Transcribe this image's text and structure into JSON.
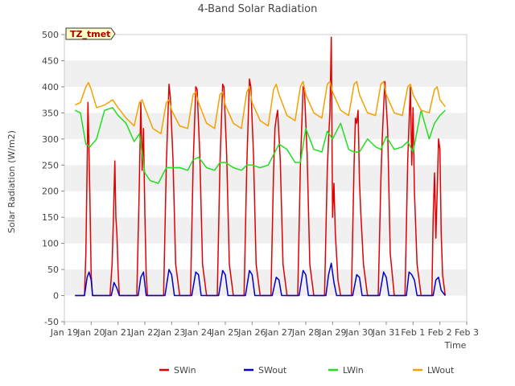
{
  "chart_data": {
    "type": "line",
    "title": "4-Band Solar Radiation",
    "xlabel": "Time",
    "ylabel": "Solar Radiation (W/m2)",
    "badge": "TZ_tmet",
    "ylim": [
      -50,
      500
    ],
    "yticks": [
      -50,
      0,
      50,
      100,
      150,
      200,
      250,
      300,
      350,
      400,
      450,
      500
    ],
    "xlim": [
      0,
      15
    ],
    "xtick_labels": [
      "Jan 19",
      "Jan 20",
      "Jan 21",
      "Jan 22",
      "Jan 23",
      "Jan 24",
      "Jan 25",
      "Jan 26",
      "Jan 27",
      "Jan 28",
      "Jan 29",
      "Jan 30",
      "Jan 31",
      "Feb 1",
      "Feb 2",
      "Feb 3"
    ],
    "legend_position": "bottom",
    "grid": "horizontal bands",
    "series": [
      {
        "name": "SWin",
        "color": "#e00000",
        "x": [
          0.4,
          0.75,
          0.8,
          0.85,
          0.88,
          0.91,
          0.95,
          1.0,
          1.05,
          1.3,
          1.7,
          1.78,
          1.83,
          1.88,
          1.92,
          1.96,
          2.0,
          2.05,
          2.1,
          2.3,
          2.7,
          2.78,
          2.85,
          2.9,
          2.95,
          3.0,
          3.05,
          3.1,
          3.4,
          3.7,
          3.8,
          3.9,
          3.95,
          4.05,
          4.15,
          4.3,
          4.7,
          4.8,
          4.9,
          4.95,
          5.05,
          5.15,
          5.3,
          5.7,
          5.8,
          5.9,
          5.95,
          6.05,
          6.15,
          6.3,
          6.7,
          6.8,
          6.9,
          6.95,
          7.05,
          7.15,
          7.3,
          7.7,
          7.8,
          7.85,
          7.9,
          7.95,
          8.05,
          8.15,
          8.3,
          8.7,
          8.8,
          8.9,
          8.95,
          9.05,
          9.15,
          9.3,
          9.7,
          9.8,
          9.85,
          9.9,
          9.95,
          10.0,
          10.05,
          10.1,
          10.2,
          10.3,
          10.7,
          10.8,
          10.85,
          10.9,
          10.95,
          11.0,
          11.05,
          11.15,
          11.3,
          11.7,
          11.8,
          11.85,
          11.9,
          11.95,
          12.05,
          12.15,
          12.3,
          12.7,
          12.8,
          12.85,
          12.9,
          12.95,
          13.0,
          13.05,
          13.15,
          13.3,
          13.7,
          13.75,
          13.8,
          13.85,
          13.9,
          13.95,
          14.0,
          14.05,
          14.1,
          14.2
        ],
        "values": [
          0,
          0,
          80,
          250,
          370,
          300,
          190,
          40,
          0,
          0,
          0,
          60,
          150,
          258,
          150,
          118,
          50,
          0,
          0,
          0,
          0,
          180,
          370,
          240,
          320,
          160,
          40,
          0,
          0,
          0,
          250,
          405,
          380,
          260,
          60,
          0,
          0,
          250,
          400,
          395,
          270,
          60,
          0,
          0,
          250,
          405,
          400,
          270,
          60,
          0,
          0,
          250,
          415,
          400,
          270,
          60,
          0,
          0,
          240,
          320,
          340,
          355,
          260,
          60,
          0,
          0,
          250,
          400,
          395,
          270,
          60,
          0,
          0,
          240,
          300,
          350,
          495,
          150,
          215,
          120,
          30,
          0,
          0,
          250,
          340,
          330,
          355,
          220,
          160,
          60,
          0,
          0,
          220,
          300,
          360,
          410,
          320,
          80,
          0,
          0,
          260,
          330,
          400,
          250,
          360,
          200,
          60,
          0,
          0,
          150,
          235,
          110,
          200,
          300,
          280,
          120,
          40,
          0
        ]
      },
      {
        "name": "SWout",
        "color": "#0000cc",
        "x": [
          0.4,
          0.75,
          0.85,
          0.92,
          1.0,
          1.05,
          1.3,
          1.75,
          1.85,
          1.95,
          2.05,
          2.3,
          2.75,
          2.85,
          2.95,
          3.05,
          3.4,
          3.75,
          3.9,
          4.0,
          4.1,
          4.3,
          4.75,
          4.9,
          5.0,
          5.1,
          5.3,
          5.75,
          5.9,
          6.0,
          6.1,
          6.3,
          6.75,
          6.9,
          7.0,
          7.1,
          7.3,
          7.75,
          7.9,
          8.0,
          8.1,
          8.3,
          8.75,
          8.9,
          9.0,
          9.1,
          9.3,
          9.75,
          9.85,
          9.95,
          10.05,
          10.15,
          10.3,
          10.75,
          10.9,
          11.0,
          11.1,
          11.3,
          11.75,
          11.9,
          12.0,
          12.1,
          12.3,
          12.75,
          12.85,
          12.95,
          13.05,
          13.15,
          13.3,
          13.75,
          13.85,
          13.95,
          14.05,
          14.2
        ],
        "values": [
          0,
          0,
          35,
          45,
          30,
          0,
          0,
          0,
          25,
          15,
          0,
          0,
          0,
          35,
          45,
          0,
          0,
          0,
          50,
          40,
          0,
          0,
          0,
          45,
          40,
          0,
          0,
          0,
          48,
          40,
          0,
          0,
          0,
          48,
          40,
          0,
          0,
          0,
          35,
          30,
          0,
          0,
          0,
          48,
          40,
          0,
          0,
          0,
          40,
          62,
          25,
          0,
          0,
          0,
          40,
          35,
          0,
          0,
          0,
          45,
          35,
          0,
          0,
          0,
          45,
          40,
          30,
          0,
          0,
          0,
          30,
          35,
          10,
          0
        ]
      },
      {
        "name": "LWin",
        "color": "#22dd22",
        "x": [
          0.4,
          0.6,
          0.8,
          0.95,
          1.2,
          1.5,
          1.8,
          2.0,
          2.3,
          2.6,
          2.8,
          3.0,
          3.2,
          3.5,
          3.8,
          4.0,
          4.3,
          4.6,
          4.8,
          5.0,
          5.3,
          5.6,
          5.8,
          6.0,
          6.3,
          6.6,
          6.8,
          7.0,
          7.3,
          7.6,
          7.8,
          8.0,
          8.3,
          8.6,
          8.8,
          9.0,
          9.3,
          9.6,
          9.8,
          10.0,
          10.3,
          10.6,
          10.8,
          11.0,
          11.3,
          11.6,
          11.8,
          12.0,
          12.3,
          12.6,
          12.8,
          13.0,
          13.3,
          13.6,
          13.8,
          14.0,
          14.2
        ],
        "values": [
          355,
          350,
          290,
          285,
          300,
          355,
          360,
          345,
          330,
          295,
          310,
          235,
          220,
          215,
          245,
          245,
          245,
          240,
          260,
          265,
          245,
          240,
          255,
          255,
          245,
          240,
          250,
          250,
          245,
          250,
          270,
          290,
          280,
          255,
          255,
          320,
          280,
          275,
          315,
          300,
          330,
          280,
          275,
          275,
          300,
          285,
          280,
          305,
          280,
          285,
          295,
          275,
          355,
          300,
          330,
          345,
          355
        ]
      },
      {
        "name": "LWout",
        "color": "#f5a000",
        "x": [
          0.4,
          0.6,
          0.8,
          0.9,
          1.0,
          1.2,
          1.5,
          1.8,
          2.0,
          2.3,
          2.6,
          2.8,
          2.9,
          3.0,
          3.3,
          3.6,
          3.8,
          3.9,
          4.0,
          4.3,
          4.6,
          4.8,
          4.9,
          5.0,
          5.3,
          5.6,
          5.8,
          5.9,
          6.0,
          6.3,
          6.6,
          6.8,
          6.9,
          7.0,
          7.3,
          7.6,
          7.8,
          7.9,
          8.0,
          8.3,
          8.6,
          8.8,
          8.9,
          9.0,
          9.3,
          9.6,
          9.8,
          9.9,
          10.0,
          10.3,
          10.6,
          10.8,
          10.9,
          11.0,
          11.3,
          11.6,
          11.8,
          11.9,
          12.0,
          12.3,
          12.6,
          12.8,
          12.9,
          13.0,
          13.3,
          13.6,
          13.8,
          13.9,
          14.0,
          14.2
        ],
        "values": [
          365,
          370,
          400,
          408,
          395,
          360,
          365,
          375,
          360,
          340,
          325,
          370,
          375,
          360,
          320,
          310,
          370,
          375,
          355,
          325,
          320,
          385,
          390,
          370,
          330,
          320,
          385,
          390,
          365,
          330,
          320,
          390,
          400,
          370,
          335,
          325,
          395,
          405,
          385,
          345,
          335,
          400,
          410,
          385,
          350,
          340,
          405,
          410,
          390,
          355,
          345,
          405,
          410,
          385,
          350,
          345,
          405,
          410,
          385,
          350,
          345,
          400,
          405,
          385,
          355,
          350,
          395,
          400,
          375,
          362
        ]
      }
    ]
  }
}
